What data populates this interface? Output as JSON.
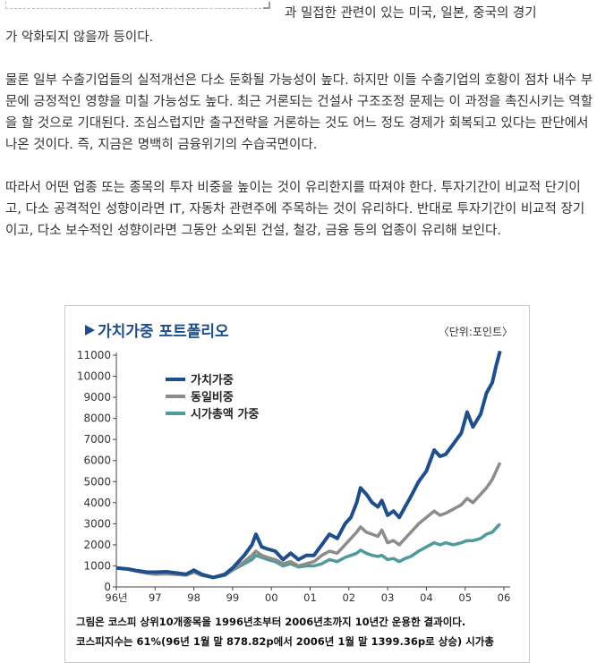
{
  "article": {
    "line1": "과 밀접한 관련이 있는 미국, 일본, 중국의 경기",
    "line2": "가 악화되지 않을까 등이다.",
    "para2": "물론 일부 수출기업들의 실적개선은 다소 둔화될 가능성이 높다. 하지만 이들 수출기업의 호황이 점차 내수 부문에 긍정적인 영향을 미칠 가능성도 높다. 최근 거론되는 건설사 구조조정 문제는 이 과정을 촉진시키는 역할을 할 것으로 기대된다. 조심스럽지만 출구전략을 거론하는 것도 어느 정도 경제가 회복되고 있다는 판단에서 나온 것이다. 즉, 지금은 명백히 금융위기의 수습국면이다.",
    "para3": "따라서 어떤 업종 또는 종목의 투자 비중을 높이는 것이 유리한지를 따져야 한다. 투자기간이 비교적 단기이고, 다소 공격적인 성향이라면 IT, 자동차 관련주에 주목하는 것이 유리하다. 반대로 투자기간이 비교적 장기이고, 다소 보수적인 성향이라면 그동안 소외된 건설, 철강, 금융 등의 업종이 유리해 보인다."
  },
  "figure": {
    "caption_line1": "그림은 코스피 상위10개종목을 1996년초부터 2006년초까지 10년간 운용한 결과이다.",
    "caption_line2": "코스피지수는 61%(96년 1월 말 878.82p에서 2006년 1월 말 1399.36p로 상승) 시가총"
  },
  "chart_data": {
    "type": "line",
    "title": "가치가중 포트폴리오",
    "unit": "〈단위:포인트〉",
    "x": [
      "96년",
      "97",
      "98",
      "99",
      "00",
      "01",
      "02",
      "03",
      "04",
      "05",
      "06"
    ],
    "ylim": [
      0,
      11000
    ],
    "yticks": [
      0,
      1000,
      2000,
      3000,
      4000,
      5000,
      6000,
      7000,
      8000,
      9000,
      10000,
      11000
    ],
    "grid": false,
    "legend_position": "top-left",
    "series": [
      {
        "name": "가치가중",
        "color": "#1f4e8c",
        "points": [
          [
            0,
            900
          ],
          [
            0.3,
            850
          ],
          [
            0.5,
            780
          ],
          [
            0.8,
            700
          ],
          [
            1.0,
            700
          ],
          [
            1.3,
            720
          ],
          [
            1.6,
            650
          ],
          [
            1.8,
            600
          ],
          [
            2.0,
            800
          ],
          [
            2.2,
            600
          ],
          [
            2.5,
            450
          ],
          [
            2.8,
            600
          ],
          [
            3.0,
            900
          ],
          [
            3.3,
            1500
          ],
          [
            3.5,
            2000
          ],
          [
            3.6,
            2500
          ],
          [
            3.75,
            1900
          ],
          [
            3.9,
            1800
          ],
          [
            4.1,
            1700
          ],
          [
            4.3,
            1300
          ],
          [
            4.5,
            1600
          ],
          [
            4.7,
            1300
          ],
          [
            4.9,
            1500
          ],
          [
            5.1,
            1500
          ],
          [
            5.3,
            2000
          ],
          [
            5.5,
            2500
          ],
          [
            5.7,
            2300
          ],
          [
            5.9,
            3000
          ],
          [
            6.05,
            3300
          ],
          [
            6.2,
            4000
          ],
          [
            6.3,
            4700
          ],
          [
            6.45,
            4400
          ],
          [
            6.6,
            4000
          ],
          [
            6.75,
            3800
          ],
          [
            6.85,
            4100
          ],
          [
            7.0,
            3400
          ],
          [
            7.15,
            3600
          ],
          [
            7.3,
            3300
          ],
          [
            7.45,
            3800
          ],
          [
            7.6,
            4300
          ],
          [
            7.8,
            5000
          ],
          [
            8.0,
            5500
          ],
          [
            8.2,
            6500
          ],
          [
            8.35,
            6200
          ],
          [
            8.5,
            6300
          ],
          [
            8.7,
            6800
          ],
          [
            8.9,
            7300
          ],
          [
            9.05,
            8300
          ],
          [
            9.2,
            7600
          ],
          [
            9.4,
            8200
          ],
          [
            9.55,
            9200
          ],
          [
            9.7,
            9700
          ],
          [
            9.8,
            10500
          ],
          [
            9.9,
            11200
          ]
        ]
      },
      {
        "name": "동일비중",
        "color": "#8c8c8c",
        "points": [
          [
            0,
            900
          ],
          [
            0.3,
            850
          ],
          [
            0.5,
            750
          ],
          [
            0.8,
            650
          ],
          [
            1.0,
            600
          ],
          [
            1.3,
            620
          ],
          [
            1.6,
            580
          ],
          [
            1.8,
            560
          ],
          [
            2.0,
            700
          ],
          [
            2.2,
            550
          ],
          [
            2.5,
            450
          ],
          [
            2.8,
            600
          ],
          [
            3.0,
            800
          ],
          [
            3.3,
            1200
          ],
          [
            3.5,
            1500
          ],
          [
            3.6,
            1700
          ],
          [
            3.75,
            1500
          ],
          [
            3.9,
            1400
          ],
          [
            4.1,
            1300
          ],
          [
            4.3,
            1100
          ],
          [
            4.5,
            1200
          ],
          [
            4.7,
            1000
          ],
          [
            4.9,
            1100
          ],
          [
            5.1,
            1200
          ],
          [
            5.3,
            1500
          ],
          [
            5.5,
            1700
          ],
          [
            5.7,
            1600
          ],
          [
            5.9,
            2000
          ],
          [
            6.05,
            2300
          ],
          [
            6.2,
            2600
          ],
          [
            6.3,
            2850
          ],
          [
            6.45,
            2600
          ],
          [
            6.6,
            2500
          ],
          [
            6.75,
            2400
          ],
          [
            6.85,
            2700
          ],
          [
            7.0,
            2100
          ],
          [
            7.15,
            2200
          ],
          [
            7.3,
            2000
          ],
          [
            7.45,
            2300
          ],
          [
            7.6,
            2600
          ],
          [
            7.8,
            3000
          ],
          [
            8.0,
            3300
          ],
          [
            8.2,
            3600
          ],
          [
            8.35,
            3400
          ],
          [
            8.5,
            3500
          ],
          [
            8.7,
            3700
          ],
          [
            8.9,
            3900
          ],
          [
            9.05,
            4200
          ],
          [
            9.2,
            4000
          ],
          [
            9.4,
            4400
          ],
          [
            9.55,
            4700
          ],
          [
            9.7,
            5100
          ],
          [
            9.8,
            5500
          ],
          [
            9.9,
            5900
          ]
        ]
      },
      {
        "name": "시가총액 가중",
        "color": "#4f9a9a",
        "points": [
          [
            0,
            900
          ],
          [
            0.3,
            850
          ],
          [
            0.5,
            780
          ],
          [
            0.8,
            700
          ],
          [
            1.0,
            680
          ],
          [
            1.3,
            650
          ],
          [
            1.6,
            600
          ],
          [
            1.8,
            560
          ],
          [
            2.0,
            700
          ],
          [
            2.2,
            580
          ],
          [
            2.5,
            450
          ],
          [
            2.8,
            550
          ],
          [
            3.0,
            800
          ],
          [
            3.3,
            1100
          ],
          [
            3.5,
            1300
          ],
          [
            3.6,
            1500
          ],
          [
            3.75,
            1400
          ],
          [
            3.9,
            1300
          ],
          [
            4.1,
            1200
          ],
          [
            4.3,
            1000
          ],
          [
            4.5,
            1100
          ],
          [
            4.7,
            950
          ],
          [
            4.9,
            1000
          ],
          [
            5.1,
            1000
          ],
          [
            5.3,
            1100
          ],
          [
            5.5,
            1300
          ],
          [
            5.7,
            1200
          ],
          [
            5.9,
            1400
          ],
          [
            6.05,
            1500
          ],
          [
            6.2,
            1600
          ],
          [
            6.3,
            1750
          ],
          [
            6.45,
            1600
          ],
          [
            6.6,
            1500
          ],
          [
            6.75,
            1450
          ],
          [
            6.85,
            1500
          ],
          [
            7.0,
            1300
          ],
          [
            7.15,
            1350
          ],
          [
            7.3,
            1200
          ],
          [
            7.45,
            1350
          ],
          [
            7.6,
            1450
          ],
          [
            7.8,
            1700
          ],
          [
            8.0,
            1900
          ],
          [
            8.2,
            2100
          ],
          [
            8.35,
            2000
          ],
          [
            8.5,
            2100
          ],
          [
            8.7,
            2000
          ],
          [
            8.9,
            2100
          ],
          [
            9.05,
            2200
          ],
          [
            9.2,
            2200
          ],
          [
            9.4,
            2300
          ],
          [
            9.55,
            2500
          ],
          [
            9.7,
            2600
          ],
          [
            9.8,
            2800
          ],
          [
            9.9,
            3000
          ]
        ]
      }
    ]
  }
}
